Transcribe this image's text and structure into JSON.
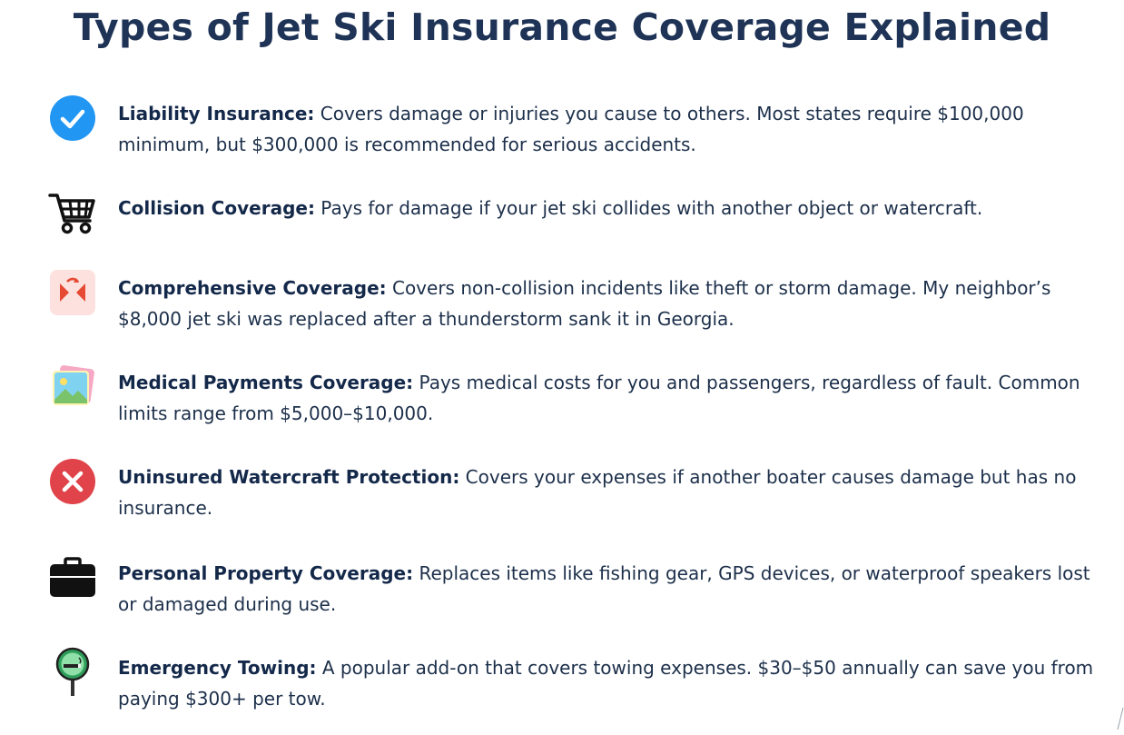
{
  "title": "Types of Jet Ski Insurance Coverage Explained",
  "items": [
    {
      "icon": "check-circle-icon",
      "term": "Liability Insurance:",
      "description": " Covers damage or injuries you cause to others. Most states require $100,000 minimum, but $300,000 is recommended for serious accidents."
    },
    {
      "icon": "shopping-cart-icon",
      "term": "Collision Coverage:",
      "description": " Pays for damage if your jet ski collides with another object or watercraft."
    },
    {
      "icon": "collision-arrows-icon",
      "term": "Comprehensive Coverage:",
      "description": " Covers non-collision incidents like theft or storm damage. My neighbor’s $8,000 jet ski was replaced after a thunderstorm sank it in Georgia."
    },
    {
      "icon": "photos-icon",
      "term": "Medical Payments Coverage:",
      "description": " Pays medical costs for you and passengers, regardless of fault. Common limits range from $5,000–$10,000."
    },
    {
      "icon": "x-circle-icon",
      "term": "Uninsured Watercraft Protection:",
      "description": " Covers your expenses if another boater causes damage but has no insurance."
    },
    {
      "icon": "briefcase-icon",
      "term": "Personal Property Coverage:",
      "description": " Replaces items like fishing gear, GPS devices, or waterproof speakers lost or damaged during use."
    },
    {
      "icon": "smoking-sign-icon",
      "term": "Emergency Towing:",
      "description": " A popular add-on that covers towing expenses. $30–$50 annually can save you from paying $300+ per tow."
    }
  ],
  "colors": {
    "title": "#1e3356",
    "text": "#1c2f4a",
    "check_blue": "#2196f3",
    "x_red": "#e0444a"
  }
}
